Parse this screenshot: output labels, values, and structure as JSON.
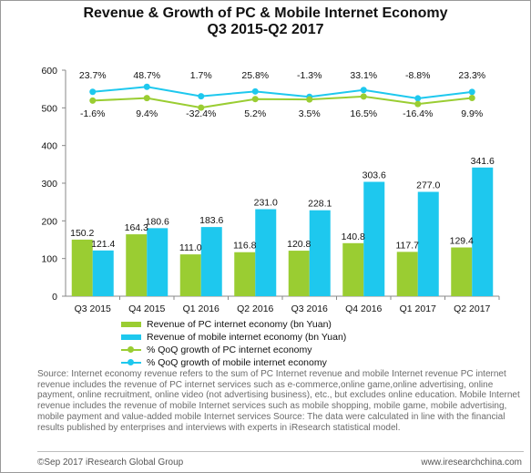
{
  "title_line1": "Revenue & Growth of PC & Mobile Internet Economy",
  "title_line2": "Q3 2015-Q2 2017",
  "colors": {
    "pc": "#9acd32",
    "mobile": "#1ec8ee",
    "pc_line": "#9acd32",
    "mobile_line": "#1ec8ee"
  },
  "chart_data": {
    "type": "bar",
    "categories": [
      "Q3 2015",
      "Q4 2015",
      "Q1 2016",
      "Q2 2016",
      "Q3 2016",
      "Q4 2016",
      "Q1 2017",
      "Q2 2017"
    ],
    "ylim": [
      0,
      600
    ],
    "yticks": [
      0,
      100,
      200,
      300,
      400,
      500,
      600
    ],
    "series": [
      {
        "name": "Revenue of PC internet economy (bn Yuan)",
        "values": [
          150.2,
          164.3,
          111.0,
          116.8,
          120.8,
          140.8,
          117.7,
          129.4
        ]
      },
      {
        "name": "Revenue of mobile internet economy (bn Yuan)",
        "values": [
          121.4,
          180.6,
          183.6,
          231.0,
          228.1,
          303.6,
          277.0,
          341.6
        ]
      }
    ],
    "growth_series": [
      {
        "name": "% QoQ growth of PC internet economy",
        "labels": [
          "-1.6%",
          "9.4%",
          "-32.4%",
          "5.2%",
          "3.5%",
          "16.5%",
          "-16.4%",
          "9.9%"
        ]
      },
      {
        "name": "% QoQ growth of mobile internet economy",
        "labels": [
          "23.7%",
          "48.7%",
          "1.7%",
          "25.8%",
          "-1.3%",
          "33.1%",
          "-8.8%",
          "23.3%"
        ]
      }
    ]
  },
  "source_text": "Source: Internet economy revenue refers to  the  sum of PC Internet revenue and mobile Internet revenue PC  internet revenue includes the revenue of PC internet services such as e-commerce,online game,online advertising, online payment, online recruitment, online video (not advertising business), etc., but excludes online education. Mobile Internet revenue includes the revenue of mobile Internet services such as mobile shopping, mobile  game, mobile  advertising, mobile payment and value-added mobile Internet services Source: The data  were calculated in line with the financial results published by enterprises and interviews with experts in iResearch statistical model.",
  "footer_left": "©Sep 2017 iResearch Global Group",
  "footer_right": "www.iresearchchina.com"
}
